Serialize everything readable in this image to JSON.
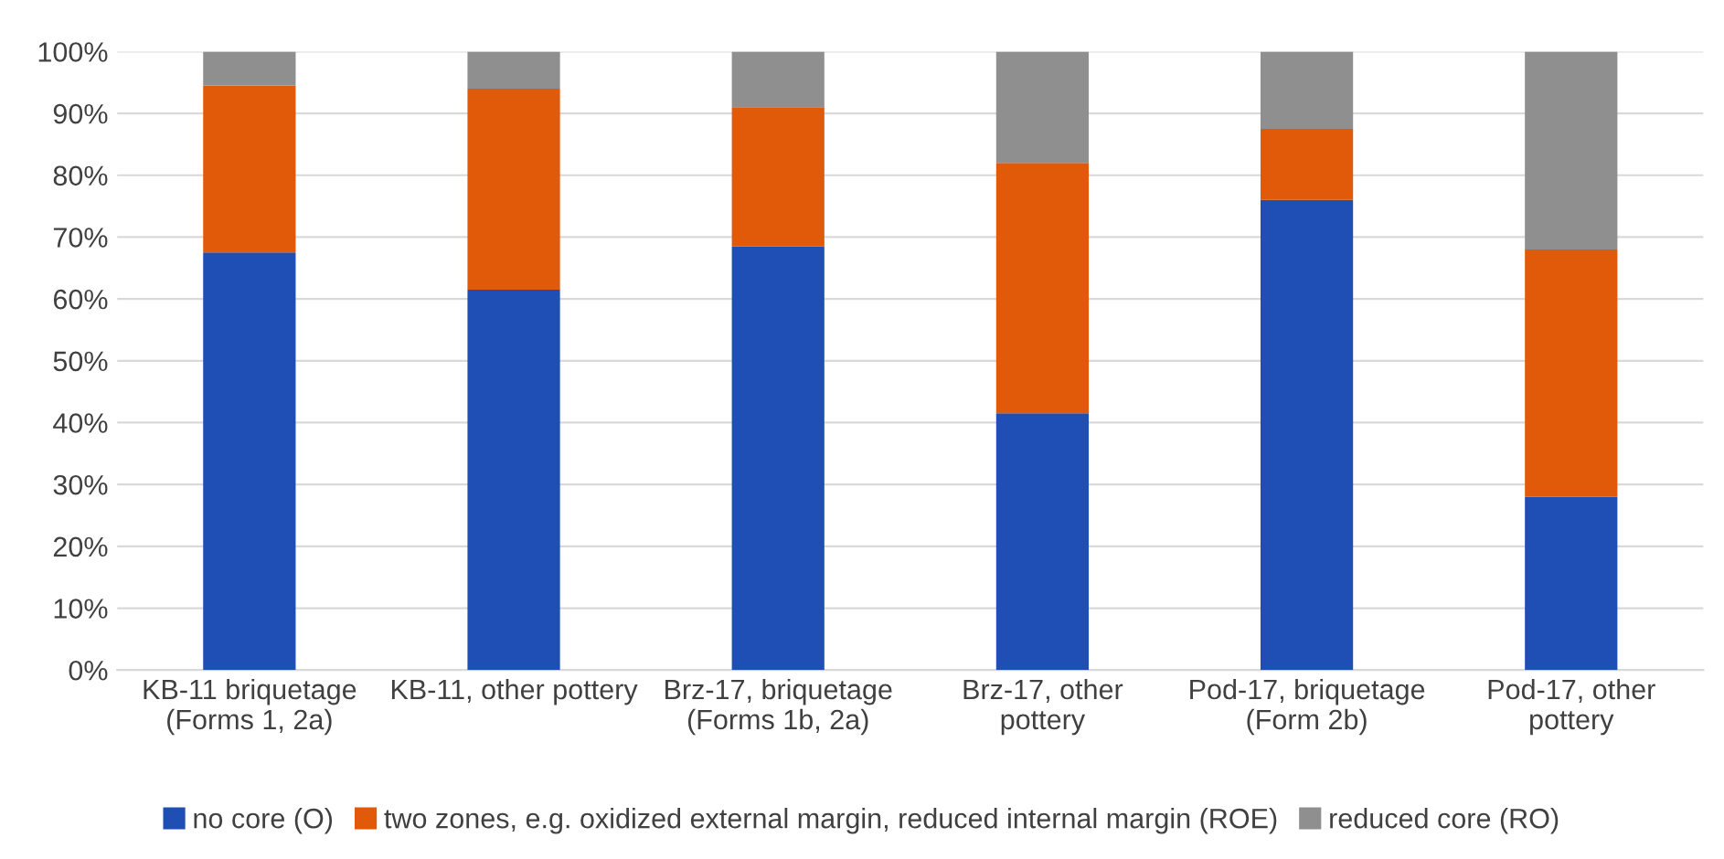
{
  "chart_data": {
    "type": "bar",
    "stacked": true,
    "categories": [
      "KB-11 briquetage\n(Forms 1, 2a)",
      "KB-11, other pottery",
      "Brz-17, briquetage\n(Forms 1b, 2a)",
      "Brz-17, other\npottery",
      "Pod-17, briquetage\n(Form 2b)",
      "Pod-17, other\npottery"
    ],
    "series": [
      {
        "name": "no core (O)",
        "color": "#1f4eb4",
        "values": [
          67.5,
          61.5,
          68.5,
          41.5,
          76,
          28
        ]
      },
      {
        "name": "two zones, e.g. oxidized external margin, reduced internal margin (ROE)",
        "color": "#e05a0a",
        "values": [
          27,
          32.5,
          22.5,
          40.5,
          11.5,
          40
        ]
      },
      {
        "name": "reduced core (RO)",
        "color": "#8f8f8f",
        "values": [
          5.5,
          6,
          9,
          18,
          12.5,
          32
        ]
      }
    ],
    "ylim": [
      0,
      100
    ],
    "yticks": [
      {
        "value": 0,
        "label": "0%"
      },
      {
        "value": 10,
        "label": "10%"
      },
      {
        "value": 20,
        "label": "20%"
      },
      {
        "value": 30,
        "label": "30%"
      },
      {
        "value": 40,
        "label": "40%"
      },
      {
        "value": 50,
        "label": "50%"
      },
      {
        "value": 60,
        "label": "60%"
      },
      {
        "value": 70,
        "label": "70%"
      },
      {
        "value": 80,
        "label": "80%"
      },
      {
        "value": 90,
        "label": "90%"
      },
      {
        "value": 100,
        "label": "100%"
      }
    ],
    "grid": "y",
    "legend": "bottom"
  }
}
